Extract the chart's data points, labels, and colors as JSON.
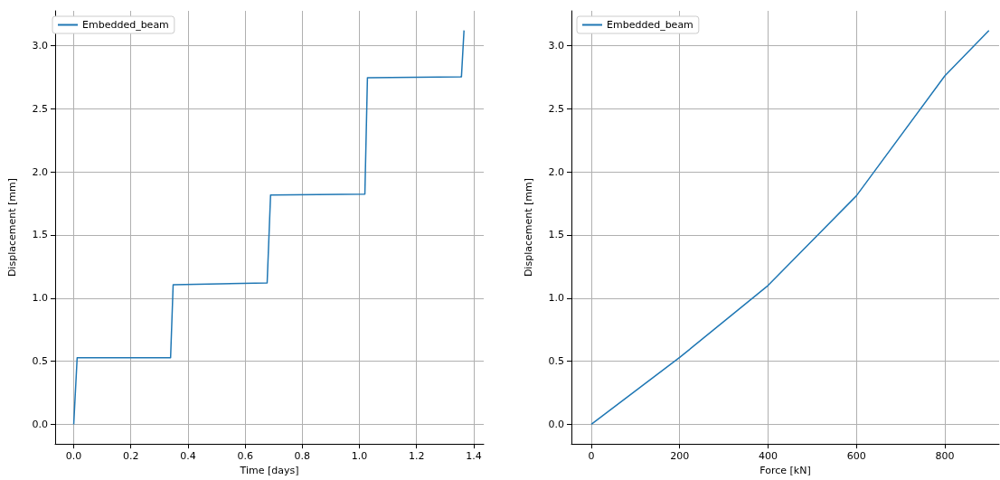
{
  "chart_data": [
    {
      "type": "line",
      "xlabel": "Time [days]",
      "ylabel": "Displacement [mm]",
      "x": [
        0,
        0.012,
        0.339,
        0.348,
        0.677,
        0.689,
        1.019,
        1.028,
        1.357,
        1.366
      ],
      "series": [
        {
          "name": "Embedded_beam",
          "color": "#1f77b4",
          "values": [
            0,
            0.528,
            0.528,
            1.106,
            1.12,
            1.817,
            1.824,
            2.746,
            2.753,
            3.12
          ]
        }
      ],
      "xlim": [
        -0.065,
        1.435
      ],
      "xticks": [
        {
          "value": 0,
          "label": "0.0"
        },
        {
          "value": 0.2,
          "label": "0.2"
        },
        {
          "value": 0.4,
          "label": "0.4"
        },
        {
          "value": 0.6,
          "label": "0.6"
        },
        {
          "value": 0.8,
          "label": "0.8"
        },
        {
          "value": 1,
          "label": "1.0"
        },
        {
          "value": 1.2,
          "label": "1.2"
        },
        {
          "value": 1.4,
          "label": "1.4"
        }
      ],
      "ylim": [
        -0.155,
        3.275
      ],
      "yticks": [
        {
          "value": 0,
          "label": "0.0"
        },
        {
          "value": 0.5,
          "label": "0.5"
        },
        {
          "value": 1,
          "label": "1.0"
        },
        {
          "value": 1.5,
          "label": "1.5"
        },
        {
          "value": 2,
          "label": "2.0"
        },
        {
          "value": 2.5,
          "label": "2.5"
        },
        {
          "value": 3,
          "label": "3.0"
        }
      ],
      "grid": true,
      "legend": "top left",
      "marker": "none",
      "line_style": "solid"
    },
    {
      "type": "line",
      "xlabel": "Force [kN]",
      "ylabel": "Displacement [mm]",
      "x": [
        0,
        200,
        400,
        600,
        800,
        900
      ],
      "series": [
        {
          "name": "Embedded_beam",
          "color": "#1f77b4",
          "values": [
            0,
            0.53,
            1.1,
            1.81,
            2.76,
            3.12
          ]
        }
      ],
      "xlim": [
        -45,
        923
      ],
      "xticks": [
        0,
        200,
        400,
        600,
        800
      ],
      "ylim": [
        -0.155,
        3.275
      ],
      "yticks": [
        {
          "value": 0,
          "label": "0.0"
        },
        {
          "value": 0.5,
          "label": "0.5"
        },
        {
          "value": 1,
          "label": "1.0"
        },
        {
          "value": 1.5,
          "label": "1.5"
        },
        {
          "value": 2,
          "label": "2.0"
        },
        {
          "value": 2.5,
          "label": "2.5"
        },
        {
          "value": 3,
          "label": "3.0"
        }
      ],
      "grid": true,
      "legend": "top left",
      "marker": "none",
      "line_style": "solid"
    }
  ]
}
